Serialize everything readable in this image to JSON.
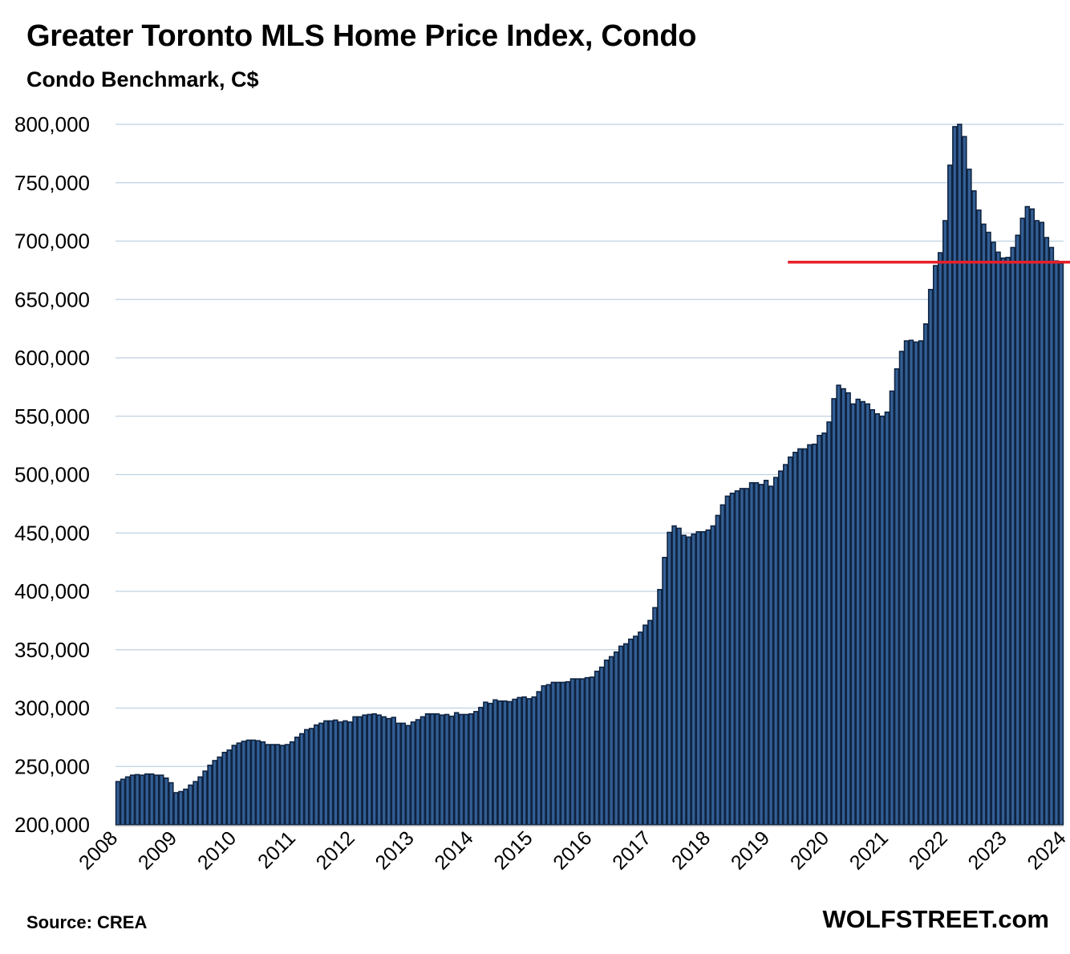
{
  "header": {
    "title": "Greater Toronto MLS Home Price Index, Condo",
    "subtitle": "Condo Benchmark, C$"
  },
  "footer": {
    "source": "Source: CREA",
    "brand": "WOLFSTREET.com"
  },
  "colors": {
    "bar_fill": "#335f94",
    "bar_edge": "#0f2340",
    "gridline": "#bfd1e0",
    "baseline": "#d9d9d9",
    "reference_line": "#e8202a"
  },
  "chart_data": {
    "type": "bar",
    "title": "Greater Toronto MLS Home Price Index, Condo",
    "subtitle": "Condo Benchmark, C$",
    "xlabel": "",
    "ylabel": "",
    "frequency": "monthly",
    "start": "2008-01",
    "ylim": [
      200000,
      800000
    ],
    "yticks": [
      200000,
      250000,
      300000,
      350000,
      400000,
      450000,
      500000,
      550000,
      600000,
      650000,
      700000,
      750000,
      800000
    ],
    "ytick_labels": [
      "200,000",
      "250,000",
      "300,000",
      "350,000",
      "400,000",
      "450,000",
      "500,000",
      "550,000",
      "600,000",
      "650,000",
      "700,000",
      "750,000",
      "800,000"
    ],
    "xtick_labels": [
      "2008",
      "2009",
      "2010",
      "2011",
      "2012",
      "2013",
      "2014",
      "2015",
      "2016",
      "2017",
      "2018",
      "2019",
      "2020",
      "2021",
      "2022",
      "2023",
      "2024"
    ],
    "grid": true,
    "legend": "none",
    "reference_line": {
      "value": 682000,
      "from_index": 139,
      "label": ""
    },
    "values": [
      237000,
      239000,
      241000,
      242500,
      243000,
      242500,
      243500,
      243500,
      242500,
      242500,
      240000,
      236000,
      227500,
      228500,
      230500,
      234000,
      237000,
      241000,
      246000,
      251000,
      255000,
      258000,
      262000,
      264000,
      268000,
      270000,
      271500,
      272500,
      272500,
      272000,
      271000,
      268700,
      268700,
      268700,
      268000,
      268700,
      271000,
      275000,
      278000,
      281500,
      282500,
      285500,
      287000,
      289000,
      289000,
      289700,
      288000,
      289000,
      288000,
      292500,
      292500,
      294000,
      294500,
      295000,
      294000,
      292500,
      291000,
      292000,
      287000,
      287000,
      285000,
      288000,
      290000,
      292500,
      295000,
      295000,
      295000,
      294000,
      294500,
      293000,
      296000,
      294500,
      294500,
      295000,
      297000,
      300500,
      305000,
      304000,
      307000,
      306000,
      306000,
      305500,
      307500,
      309000,
      309500,
      308000,
      309500,
      314000,
      319000,
      320000,
      322000,
      322000,
      322000,
      322500,
      325000,
      325000,
      325000,
      326000,
      326500,
      331500,
      335000,
      341000,
      344000,
      348000,
      353000,
      355000,
      359000,
      361500,
      365000,
      371000,
      375000,
      386000,
      401500,
      429000,
      450500,
      456000,
      454000,
      448000,
      446500,
      449000,
      451000,
      451000,
      452500,
      456000,
      465000,
      474000,
      481500,
      484000,
      486000,
      488000,
      488000,
      493000,
      493000,
      491500,
      495000,
      490000,
      497500,
      503000,
      508500,
      515000,
      519000,
      522000,
      522000,
      525500,
      526000,
      533500,
      535500,
      545000,
      565000,
      576500,
      573500,
      570000,
      560500,
      564500,
      562500,
      560500,
      555500,
      552000,
      550000,
      553500,
      571500,
      590500,
      605500,
      614500,
      615000,
      613500,
      614500,
      629000,
      658500,
      679000,
      690000,
      717500,
      765000,
      798000,
      800000,
      789500,
      761500,
      743000,
      726500,
      714500,
      707500,
      699000,
      690500,
      685500,
      686000,
      694500,
      705000,
      719500,
      729500,
      727500,
      717500,
      716000,
      703000,
      694500,
      683000,
      681000
    ]
  }
}
